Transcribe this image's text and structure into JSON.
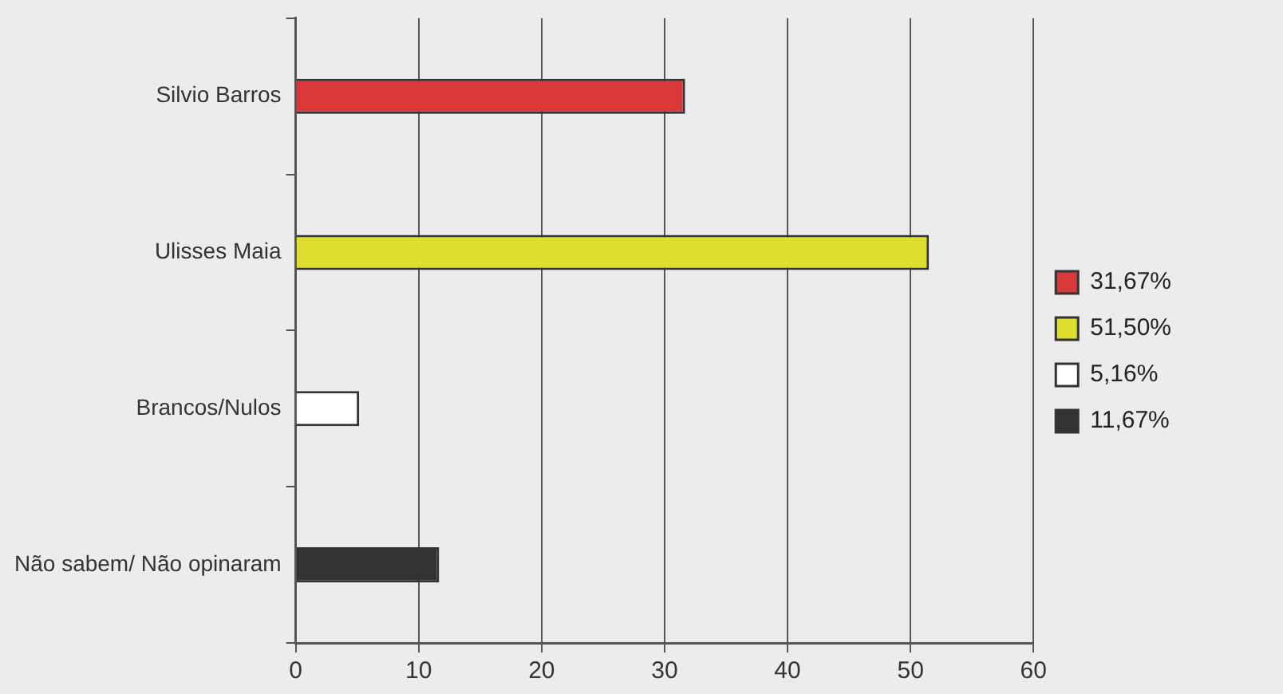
{
  "chart_data": {
    "type": "bar",
    "orientation": "horizontal",
    "stacked": true,
    "categories": [
      "Silvio Barros",
      "Ulisses Maia",
      "Brancos/Nulos",
      "Não sabem/ Não opinaram"
    ],
    "series": [
      {
        "name": "31,67%",
        "color": "#d8383a",
        "values": [
          31.67,
          null,
          null,
          null
        ]
      },
      {
        "name": "51,50%",
        "color": "#dede2e",
        "values": [
          null,
          51.5,
          null,
          null
        ]
      },
      {
        "name": "5,16%",
        "color": "#ffffff",
        "values": [
          null,
          null,
          5.16,
          null
        ]
      },
      {
        "name": "11,67%",
        "color": "#333333",
        "values": [
          null,
          null,
          null,
          11.67
        ]
      }
    ],
    "xlim": [
      0,
      60
    ],
    "xticks": [
      0,
      10,
      20,
      30,
      40,
      50,
      60
    ],
    "grid": "x",
    "legend": "right"
  }
}
